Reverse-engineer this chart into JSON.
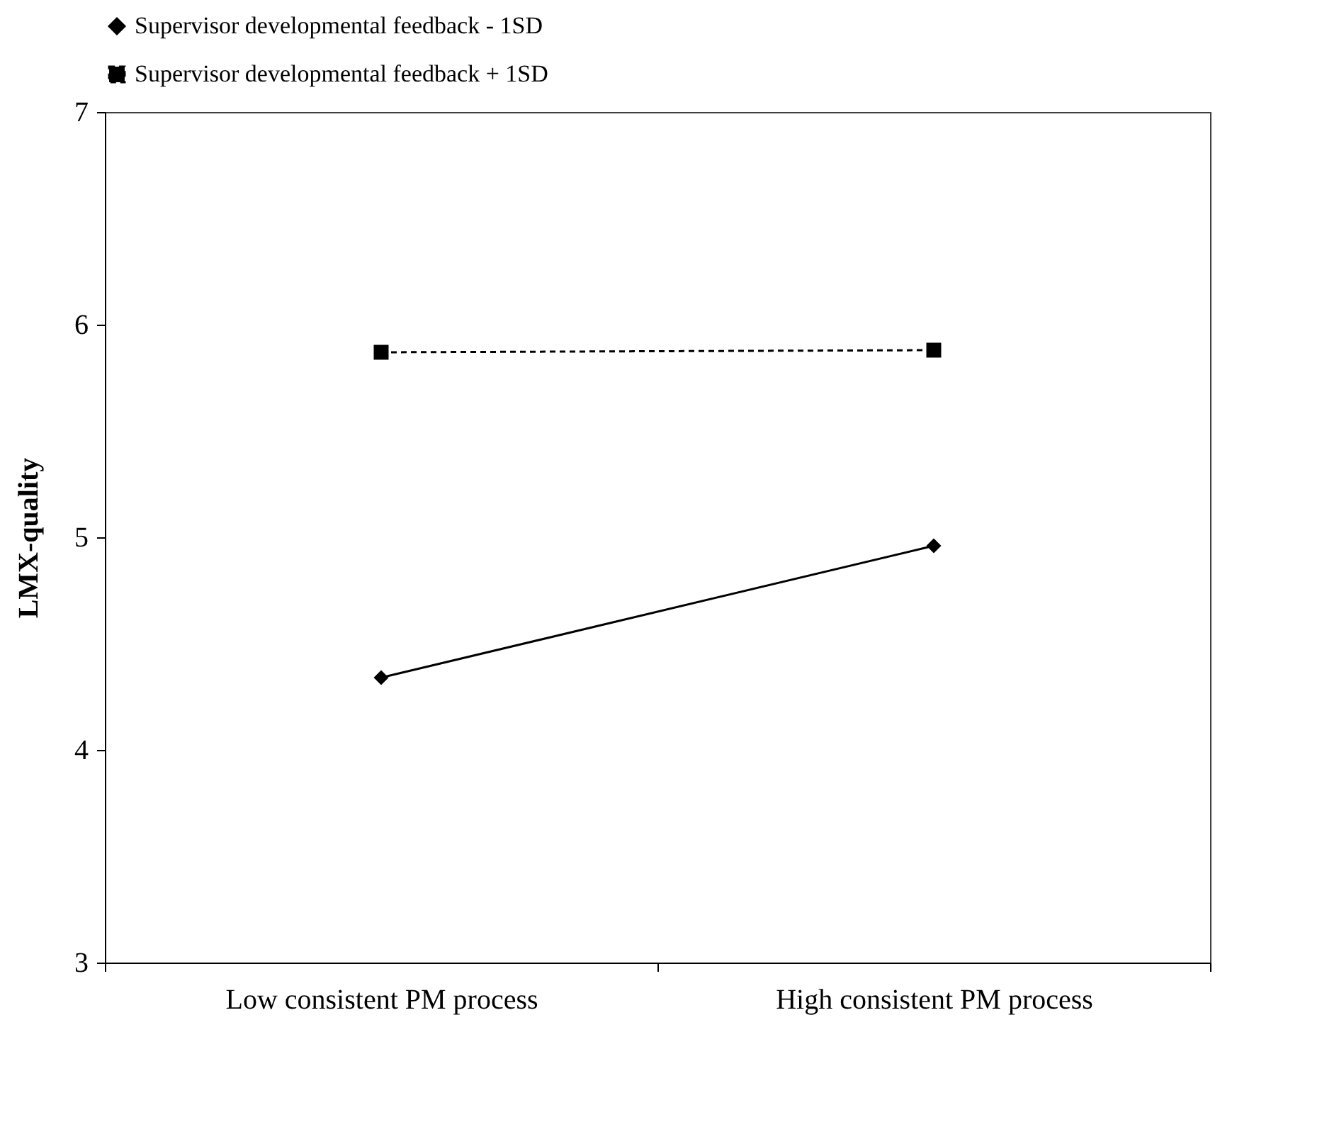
{
  "chart_data": {
    "type": "line",
    "ylabel": "LMX-quality",
    "categories": [
      "Low consistent PM process",
      "High consistent PM process"
    ],
    "series": [
      {
        "name": "Supervisor developmental feedback  - 1SD",
        "color": "#000000",
        "values": [
          4.34,
          4.96
        ],
        "marker": "diamond",
        "line_style": "solid"
      },
      {
        "name": "Supervisor developmental feedback  + 1SD",
        "color": "#000000",
        "values": [
          5.87,
          5.88
        ],
        "marker": "square",
        "line_style": "dashed"
      }
    ],
    "ylim": [
      3,
      7
    ],
    "yticks": [
      3,
      4,
      5,
      6,
      7
    ],
    "grid": false,
    "legend": "top left"
  }
}
